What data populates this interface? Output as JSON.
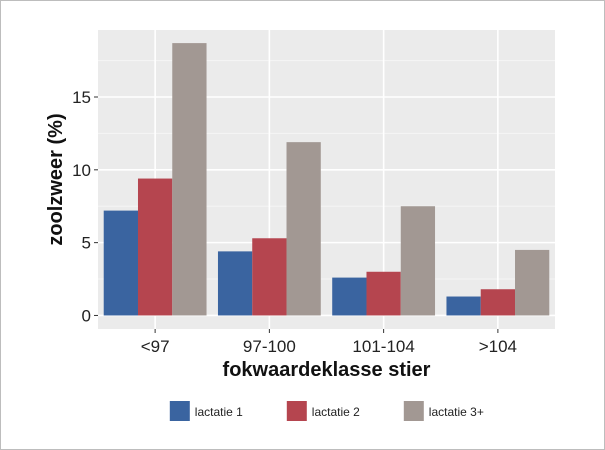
{
  "chart_data": {
    "type": "bar",
    "xlabel": "fokwaardeklasse stier",
    "ylabel": "zoolzweer (%)",
    "categories": [
      "<97",
      "97-100",
      "101-104",
      ">104"
    ],
    "series": [
      {
        "name": "lactatie 1",
        "color": "#3a64a0",
        "values": [
          7.2,
          4.4,
          2.6,
          1.3
        ]
      },
      {
        "name": "lactatie 2",
        "color": "#b5454f",
        "values": [
          9.4,
          5.3,
          3.0,
          1.8
        ]
      },
      {
        "name": "lactatie 3+",
        "color": "#a29893",
        "values": [
          18.7,
          11.9,
          7.5,
          4.5
        ]
      }
    ],
    "yticks": [
      0,
      5,
      10,
      15
    ],
    "ylim": [
      -0.93,
      19.6
    ],
    "grid": true,
    "legend_position": "bottom"
  }
}
